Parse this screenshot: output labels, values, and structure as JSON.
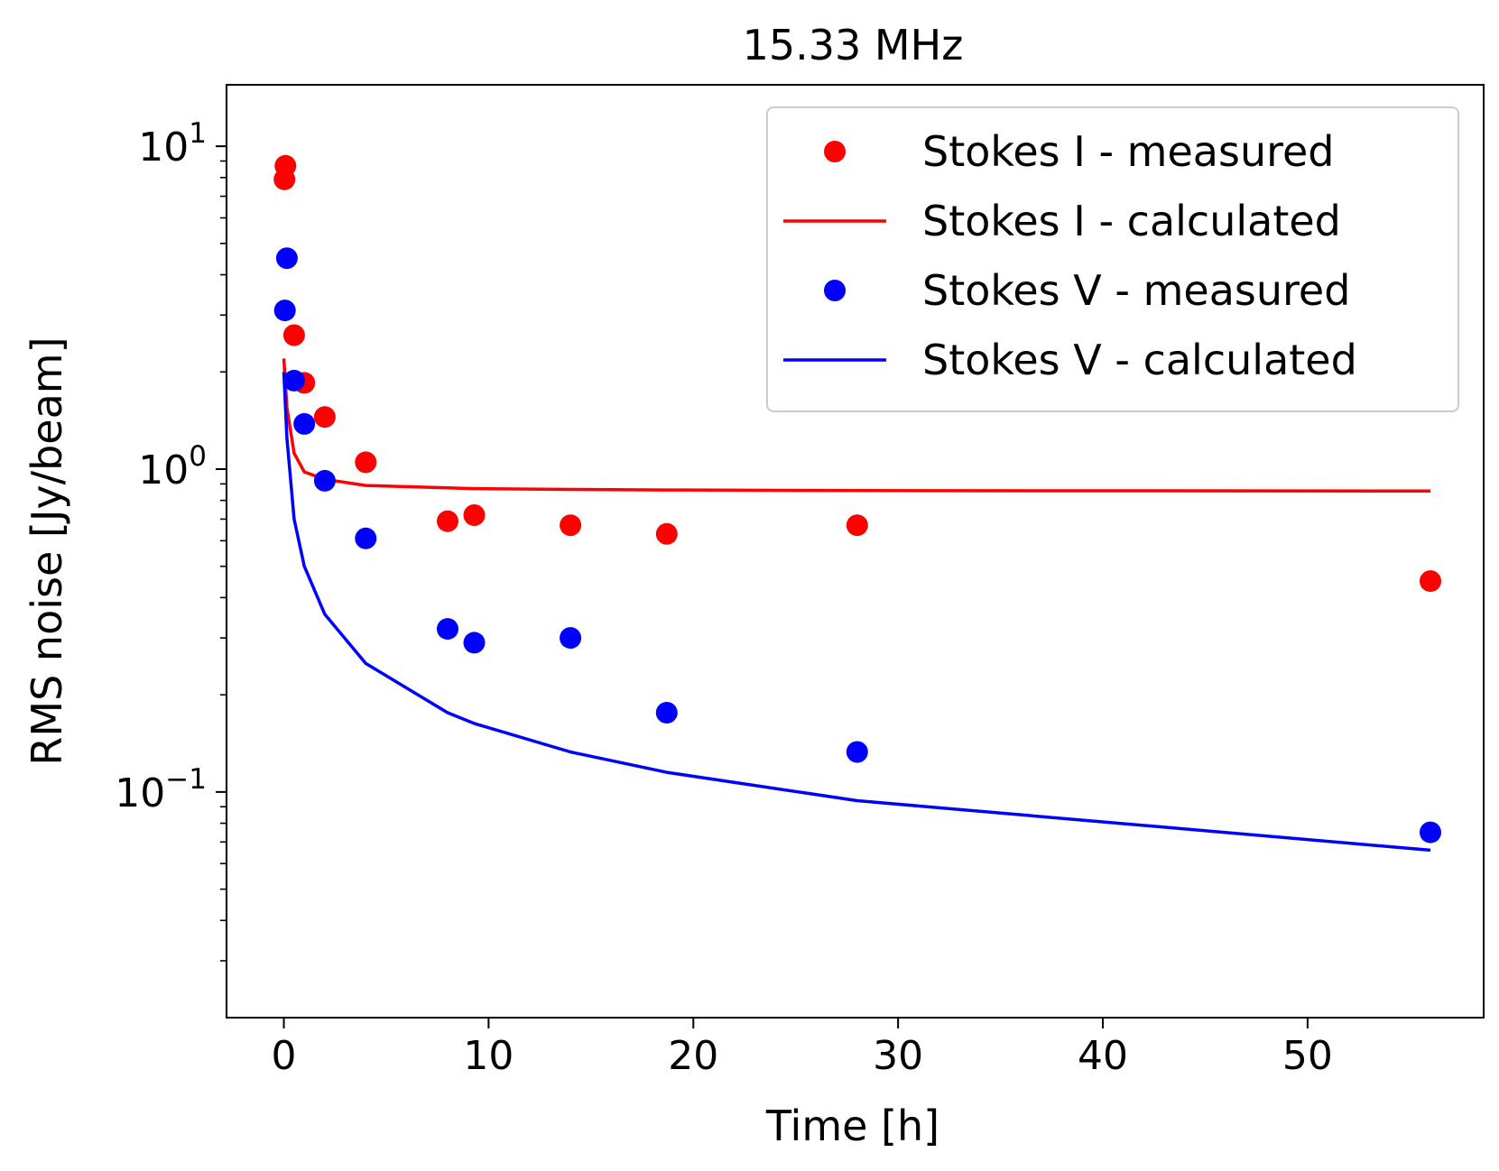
{
  "chart_data": {
    "type": "scatter",
    "title": "15.33 MHz",
    "xlabel": "Time [h]",
    "ylabel": "RMS noise [Jy/beam]",
    "xlim": [
      -2.8,
      58.6
    ],
    "ylim": [
      0.02,
      15.5
    ],
    "yscale": "log",
    "grid": false,
    "legend_position": "top-right",
    "x_ticks": [
      {
        "value": 0,
        "label": "0"
      },
      {
        "value": 10,
        "label": "10"
      },
      {
        "value": 20,
        "label": "20"
      },
      {
        "value": 30,
        "label": "30"
      },
      {
        "value": 40,
        "label": "40"
      },
      {
        "value": 50,
        "label": "50"
      }
    ],
    "y_ticks": [
      {
        "value": 0.1,
        "base": "10",
        "exp": "−1"
      },
      {
        "value": 1,
        "base": "10",
        "exp": "0"
      },
      {
        "value": 10,
        "base": "10",
        "exp": "1"
      }
    ],
    "series": [
      {
        "name": "Stokes I - measured",
        "kind": "scatter",
        "color": "#ff0000",
        "points": [
          [
            0.08,
            8.7
          ],
          [
            0.03,
            7.9
          ],
          [
            0.5,
            2.6
          ],
          [
            1.0,
            1.85
          ],
          [
            2.0,
            1.45
          ],
          [
            4.0,
            1.05
          ],
          [
            8.0,
            0.69
          ],
          [
            9.3,
            0.72
          ],
          [
            14.0,
            0.67
          ],
          [
            18.7,
            0.63
          ],
          [
            28.0,
            0.67
          ],
          [
            56.0,
            0.45
          ]
        ]
      },
      {
        "name": "Stokes I - calculated",
        "kind": "line",
        "color": "#ff0000",
        "points": [
          [
            0.0,
            2.2
          ],
          [
            0.15,
            1.55
          ],
          [
            0.5,
            1.12
          ],
          [
            1.0,
            0.98
          ],
          [
            2.0,
            0.93
          ],
          [
            4.0,
            0.89
          ],
          [
            8.0,
            0.875
          ],
          [
            9.3,
            0.87
          ],
          [
            14.0,
            0.865
          ],
          [
            18.7,
            0.862
          ],
          [
            28.0,
            0.858
          ],
          [
            56.0,
            0.855
          ]
        ]
      },
      {
        "name": "Stokes V - measured",
        "kind": "scatter",
        "color": "#0000ff",
        "points": [
          [
            0.15,
            4.5
          ],
          [
            0.05,
            3.1
          ],
          [
            0.5,
            1.88
          ],
          [
            1.0,
            1.38
          ],
          [
            2.0,
            0.92
          ],
          [
            4.0,
            0.61
          ],
          [
            8.0,
            0.32
          ],
          [
            9.3,
            0.29
          ],
          [
            14.0,
            0.3
          ],
          [
            18.7,
            0.176
          ],
          [
            28.0,
            0.133
          ],
          [
            56.0,
            0.075
          ]
        ]
      },
      {
        "name": "Stokes V - calculated",
        "kind": "line",
        "color": "#0000ff",
        "points": [
          [
            0.0,
            2.0
          ],
          [
            0.15,
            1.25
          ],
          [
            0.5,
            0.7
          ],
          [
            1.0,
            0.5
          ],
          [
            2.0,
            0.355
          ],
          [
            4.0,
            0.25
          ],
          [
            8.0,
            0.176
          ],
          [
            9.3,
            0.163
          ],
          [
            14.0,
            0.133
          ],
          [
            18.7,
            0.115
          ],
          [
            28.0,
            0.094
          ],
          [
            56.0,
            0.066
          ]
        ]
      }
    ]
  }
}
